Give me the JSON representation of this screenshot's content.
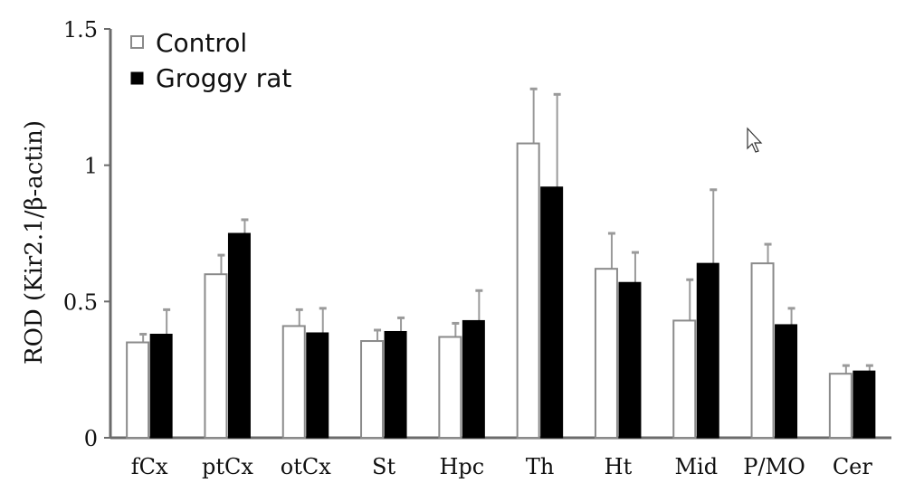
{
  "chart_data": {
    "type": "bar",
    "title": "",
    "xlabel": "",
    "ylabel": "ROD (Kir2.1/β-actin)",
    "ylim": [
      0,
      1.5
    ],
    "yticks": [
      "0",
      "0.5",
      "1",
      "1.5"
    ],
    "ytick_values": [
      0,
      0.5,
      1,
      1.5
    ],
    "categories": [
      "fCx",
      "ptCx",
      "otCx",
      "St",
      "Hpc",
      "Th",
      "Ht",
      "Mid",
      "P/MO",
      "Cer"
    ],
    "series": [
      {
        "name": "Control",
        "fill": "#ffffff",
        "stroke": "#8a8a8a",
        "values": [
          0.35,
          0.6,
          0.41,
          0.355,
          0.37,
          1.08,
          0.62,
          0.43,
          0.64,
          0.235
        ],
        "errors": [
          0.03,
          0.07,
          0.06,
          0.04,
          0.05,
          0.2,
          0.13,
          0.15,
          0.07,
          0.03
        ]
      },
      {
        "name": "Groggy rat",
        "fill": "#000000",
        "stroke": "#000000",
        "values": [
          0.38,
          0.75,
          0.385,
          0.39,
          0.43,
          0.92,
          0.57,
          0.64,
          0.415,
          0.245
        ],
        "errors": [
          0.09,
          0.05,
          0.09,
          0.05,
          0.11,
          0.34,
          0.11,
          0.27,
          0.06,
          0.02
        ]
      }
    ],
    "legend": "top-left",
    "grid": false
  },
  "colors": {
    "axis": "#6b6b6b",
    "errorbar": "#9a9a9a"
  },
  "cursor_icon": "arrow-cursor-icon"
}
